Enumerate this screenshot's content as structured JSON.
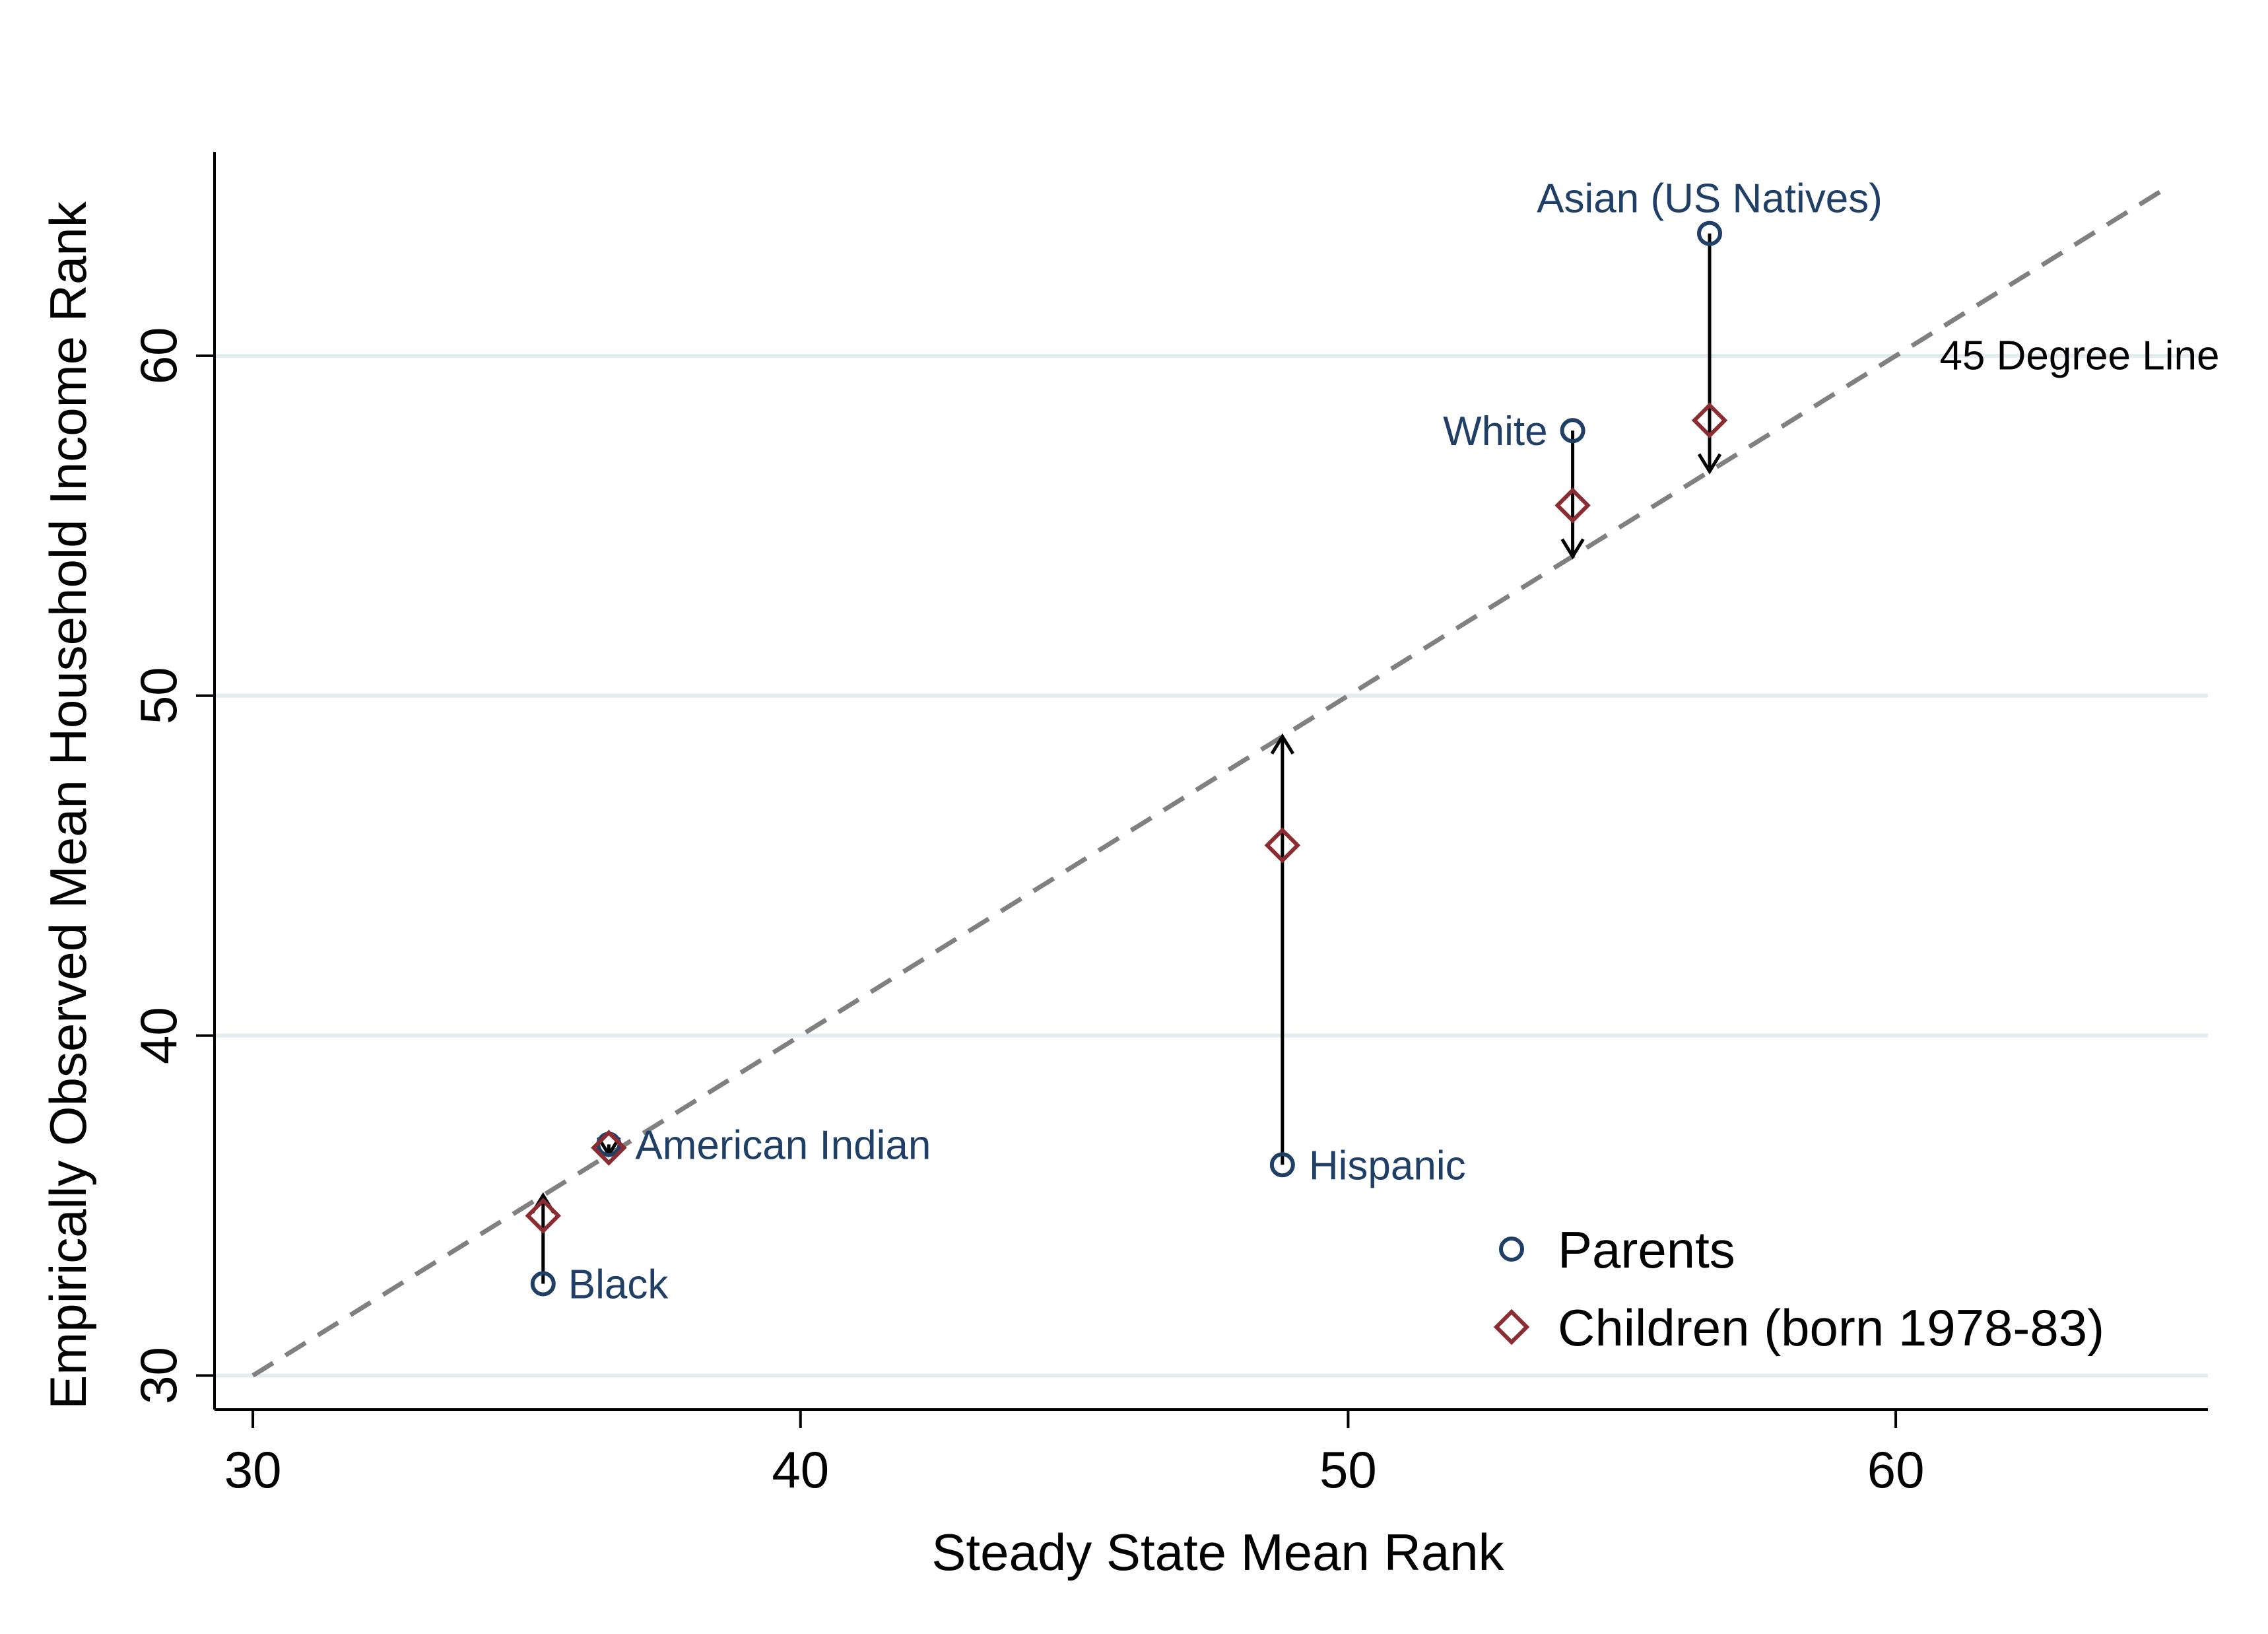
{
  "chart_data": {
    "type": "scatter",
    "xlabel": "Steady State Mean Rank",
    "ylabel": "Empirically Observed Mean Household Income Rank",
    "xlim": [
      29.3,
      65.7
    ],
    "ylim": [
      29,
      66
    ],
    "x_ticks": [
      30,
      40,
      50,
      60
    ],
    "y_ticks": [
      30,
      40,
      50,
      60
    ],
    "grid": "horizontal",
    "reference_line": {
      "label": "45 Degree Line",
      "from": [
        30,
        30
      ],
      "to": [
        65,
        65
      ]
    },
    "legend": {
      "position": "bottom-right"
    },
    "groups": [
      {
        "label": "Asian (US Natives)",
        "x": 56.6,
        "parents": 63.6,
        "children": 58.1,
        "steady_state": 56.6
      },
      {
        "label": "White",
        "x": 54.1,
        "parents": 57.8,
        "children": 55.6,
        "steady_state": 54.1
      },
      {
        "label": "Hispanic",
        "x": 48.8,
        "parents": 36.2,
        "children": 45.6,
        "steady_state": 48.8
      },
      {
        "label": "American Indian",
        "x": 36.5,
        "parents": 36.8,
        "children": 36.7,
        "steady_state": 36.5
      },
      {
        "label": "Black",
        "x": 35.3,
        "parents": 32.7,
        "children": 34.7,
        "steady_state": 35.3
      }
    ],
    "series": [
      {
        "name": "Parents",
        "marker": "circle",
        "color": "#1f3f66"
      },
      {
        "name": "Children (born 1978-83)",
        "marker": "diamond",
        "color": "#8b2b32"
      }
    ]
  }
}
